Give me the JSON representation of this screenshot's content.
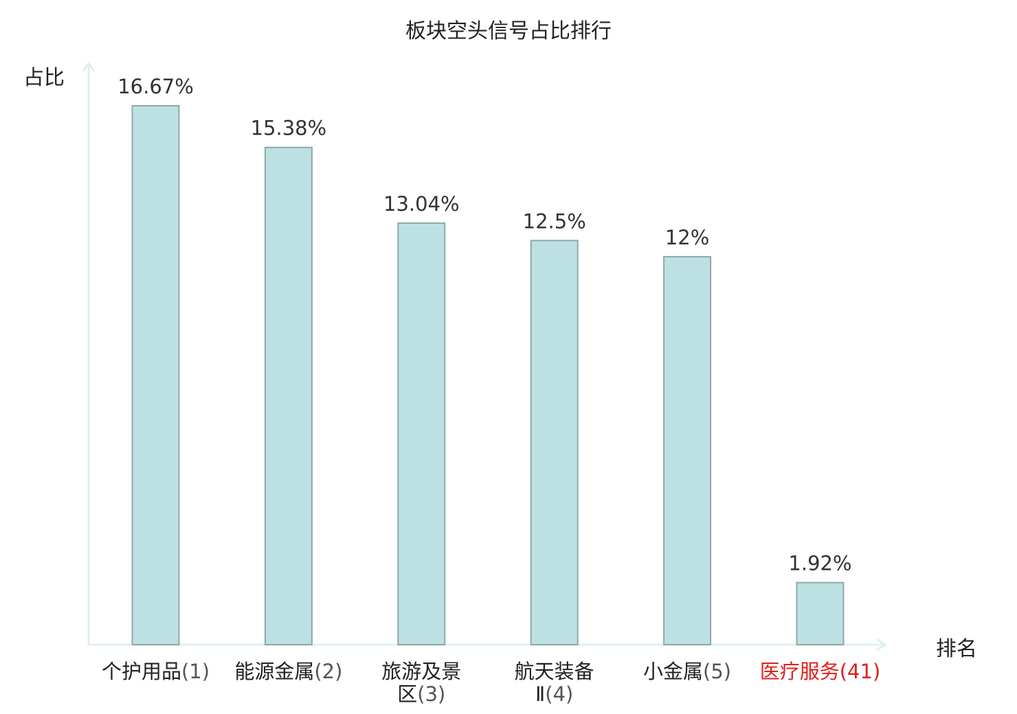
{
  "colors": {
    "bar_fill": "#bde1e3",
    "bar_stroke": "#8ea8a9",
    "axis": "#dff0ee",
    "value_text": "#333333",
    "highlight": "#e0201c"
  },
  "chart_data": {
    "type": "bar",
    "title": "板块空头信号占比排行",
    "ylabel": "占比",
    "xlabel": "排名",
    "unit": "%",
    "categories": [
      {
        "name_lines": [
          "个护用品"
        ],
        "rank": "(1)",
        "highlight": false
      },
      {
        "name_lines": [
          "能源金属"
        ],
        "rank": "(2)",
        "highlight": false
      },
      {
        "name_lines": [
          "旅游及景",
          "区"
        ],
        "rank": "(3)",
        "highlight": false
      },
      {
        "name_lines": [
          "航天装备",
          "Ⅱ"
        ],
        "rank": "(4)",
        "highlight": false
      },
      {
        "name_lines": [
          "小金属"
        ],
        "rank": "(5)",
        "highlight": false
      },
      {
        "name_lines": [
          "医疗服务"
        ],
        "rank": "(41)",
        "highlight": true
      }
    ],
    "values": [
      16.67,
      15.38,
      13.04,
      12.5,
      12,
      1.92
    ],
    "value_labels": [
      "16.67%",
      "15.38%",
      "13.04%",
      "12.5%",
      "12%",
      "1.92%"
    ],
    "grid": false,
    "legend": "none"
  }
}
